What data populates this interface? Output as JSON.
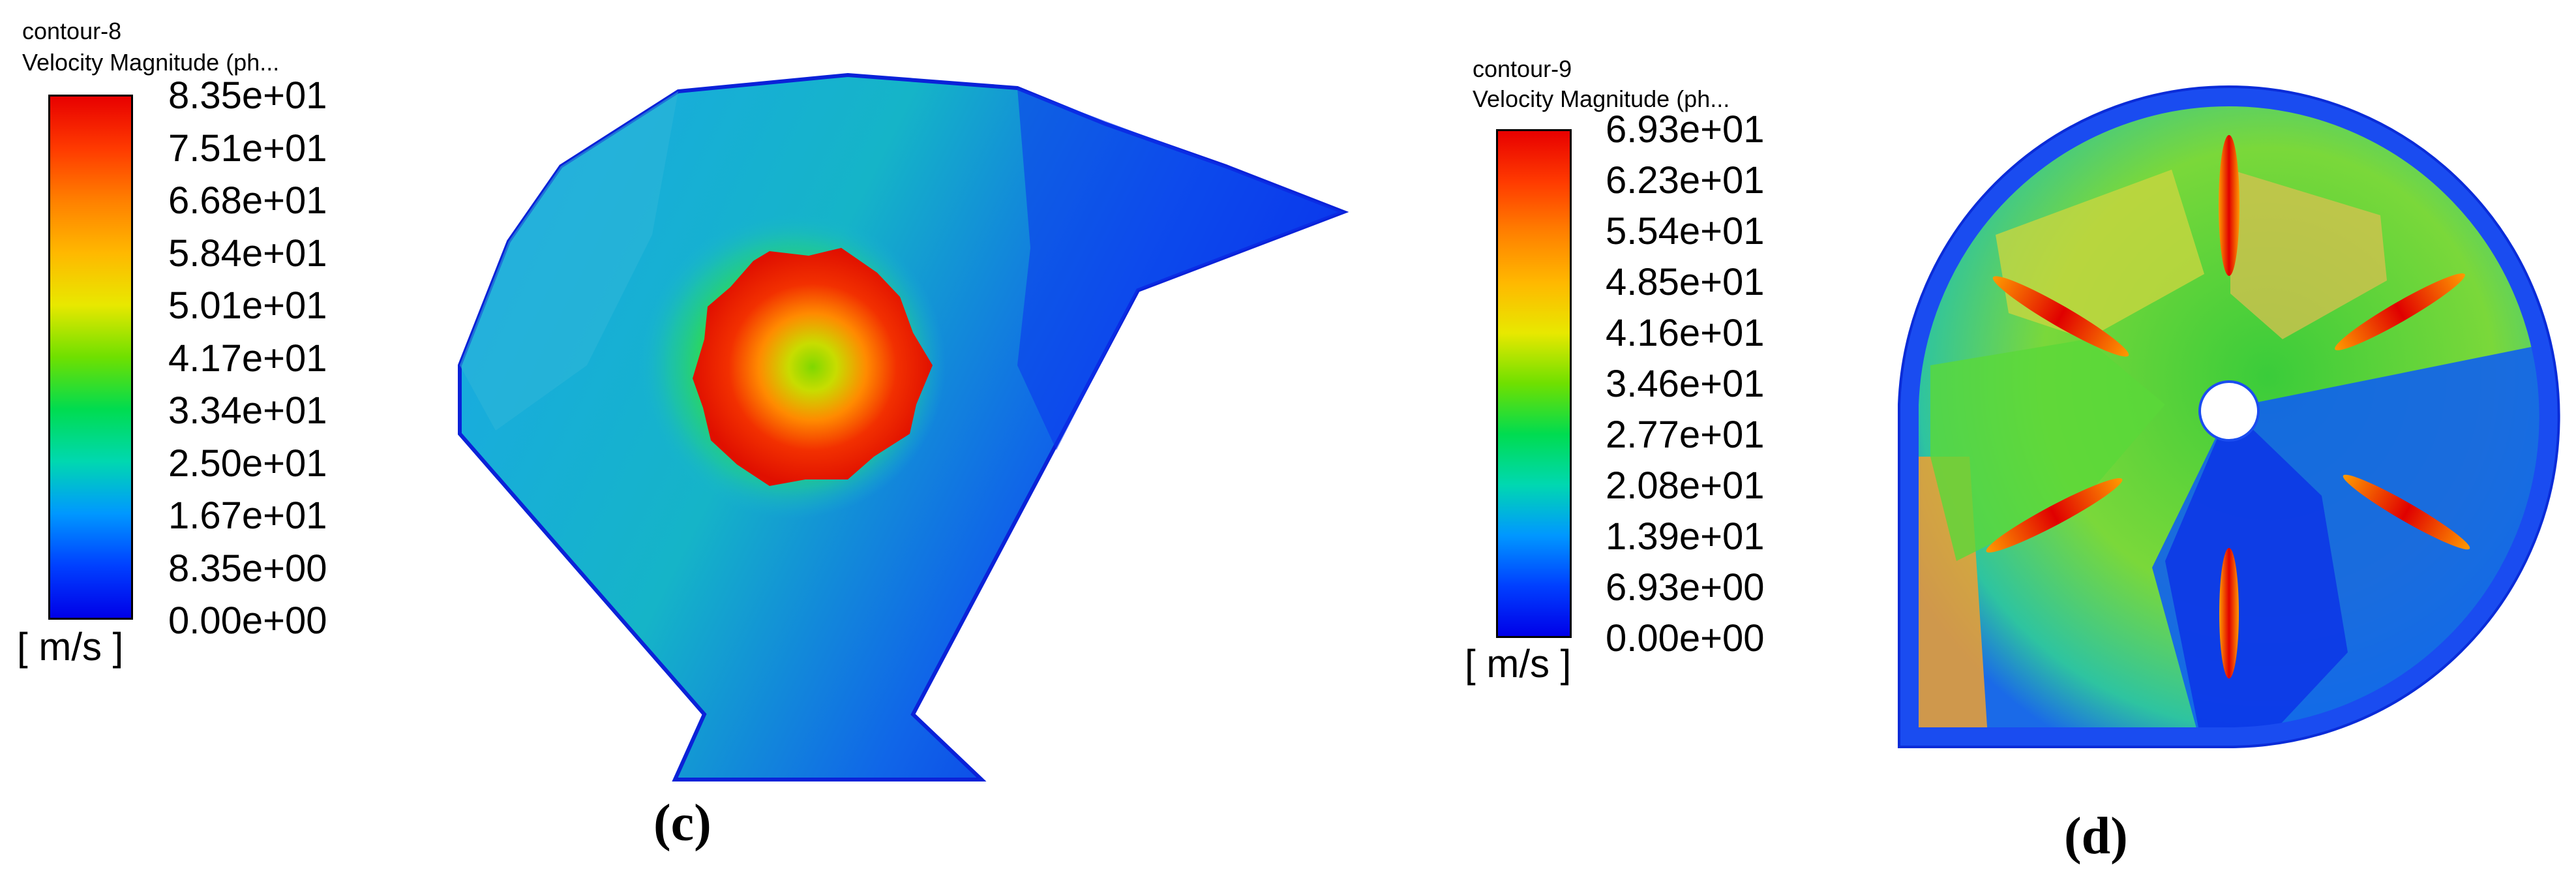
{
  "panel_c": {
    "contour_name": "contour-8",
    "variable": "Velocity Magnitude (ph...",
    "unit": "[ m/s ]",
    "ticks": [
      "8.35e+01",
      "7.51e+01",
      "6.68e+01",
      "5.84e+01",
      "5.01e+01",
      "4.17e+01",
      "3.34e+01",
      "2.50e+01",
      "1.67e+01",
      "8.35e+00",
      "0.00e+00"
    ],
    "label": "(c)"
  },
  "panel_d": {
    "contour_name": "contour-9",
    "variable": "Velocity Magnitude (ph...",
    "unit": "[ m/s ]",
    "ticks": [
      "6.93e+01",
      "6.23e+01",
      "5.54e+01",
      "4.85e+01",
      "4.16e+01",
      "3.46e+01",
      "2.77e+01",
      "2.08e+01",
      "1.39e+01",
      "6.93e+00",
      "0.00e+00"
    ],
    "label": "(d)"
  },
  "colors": {
    "colormap": [
      "#ff0000",
      "#ff5a00",
      "#ffa500",
      "#e6e600",
      "#66dd00",
      "#00dd33",
      "#00ddaa",
      "#00aaee",
      "#0055ff",
      "#0000ff"
    ]
  }
}
